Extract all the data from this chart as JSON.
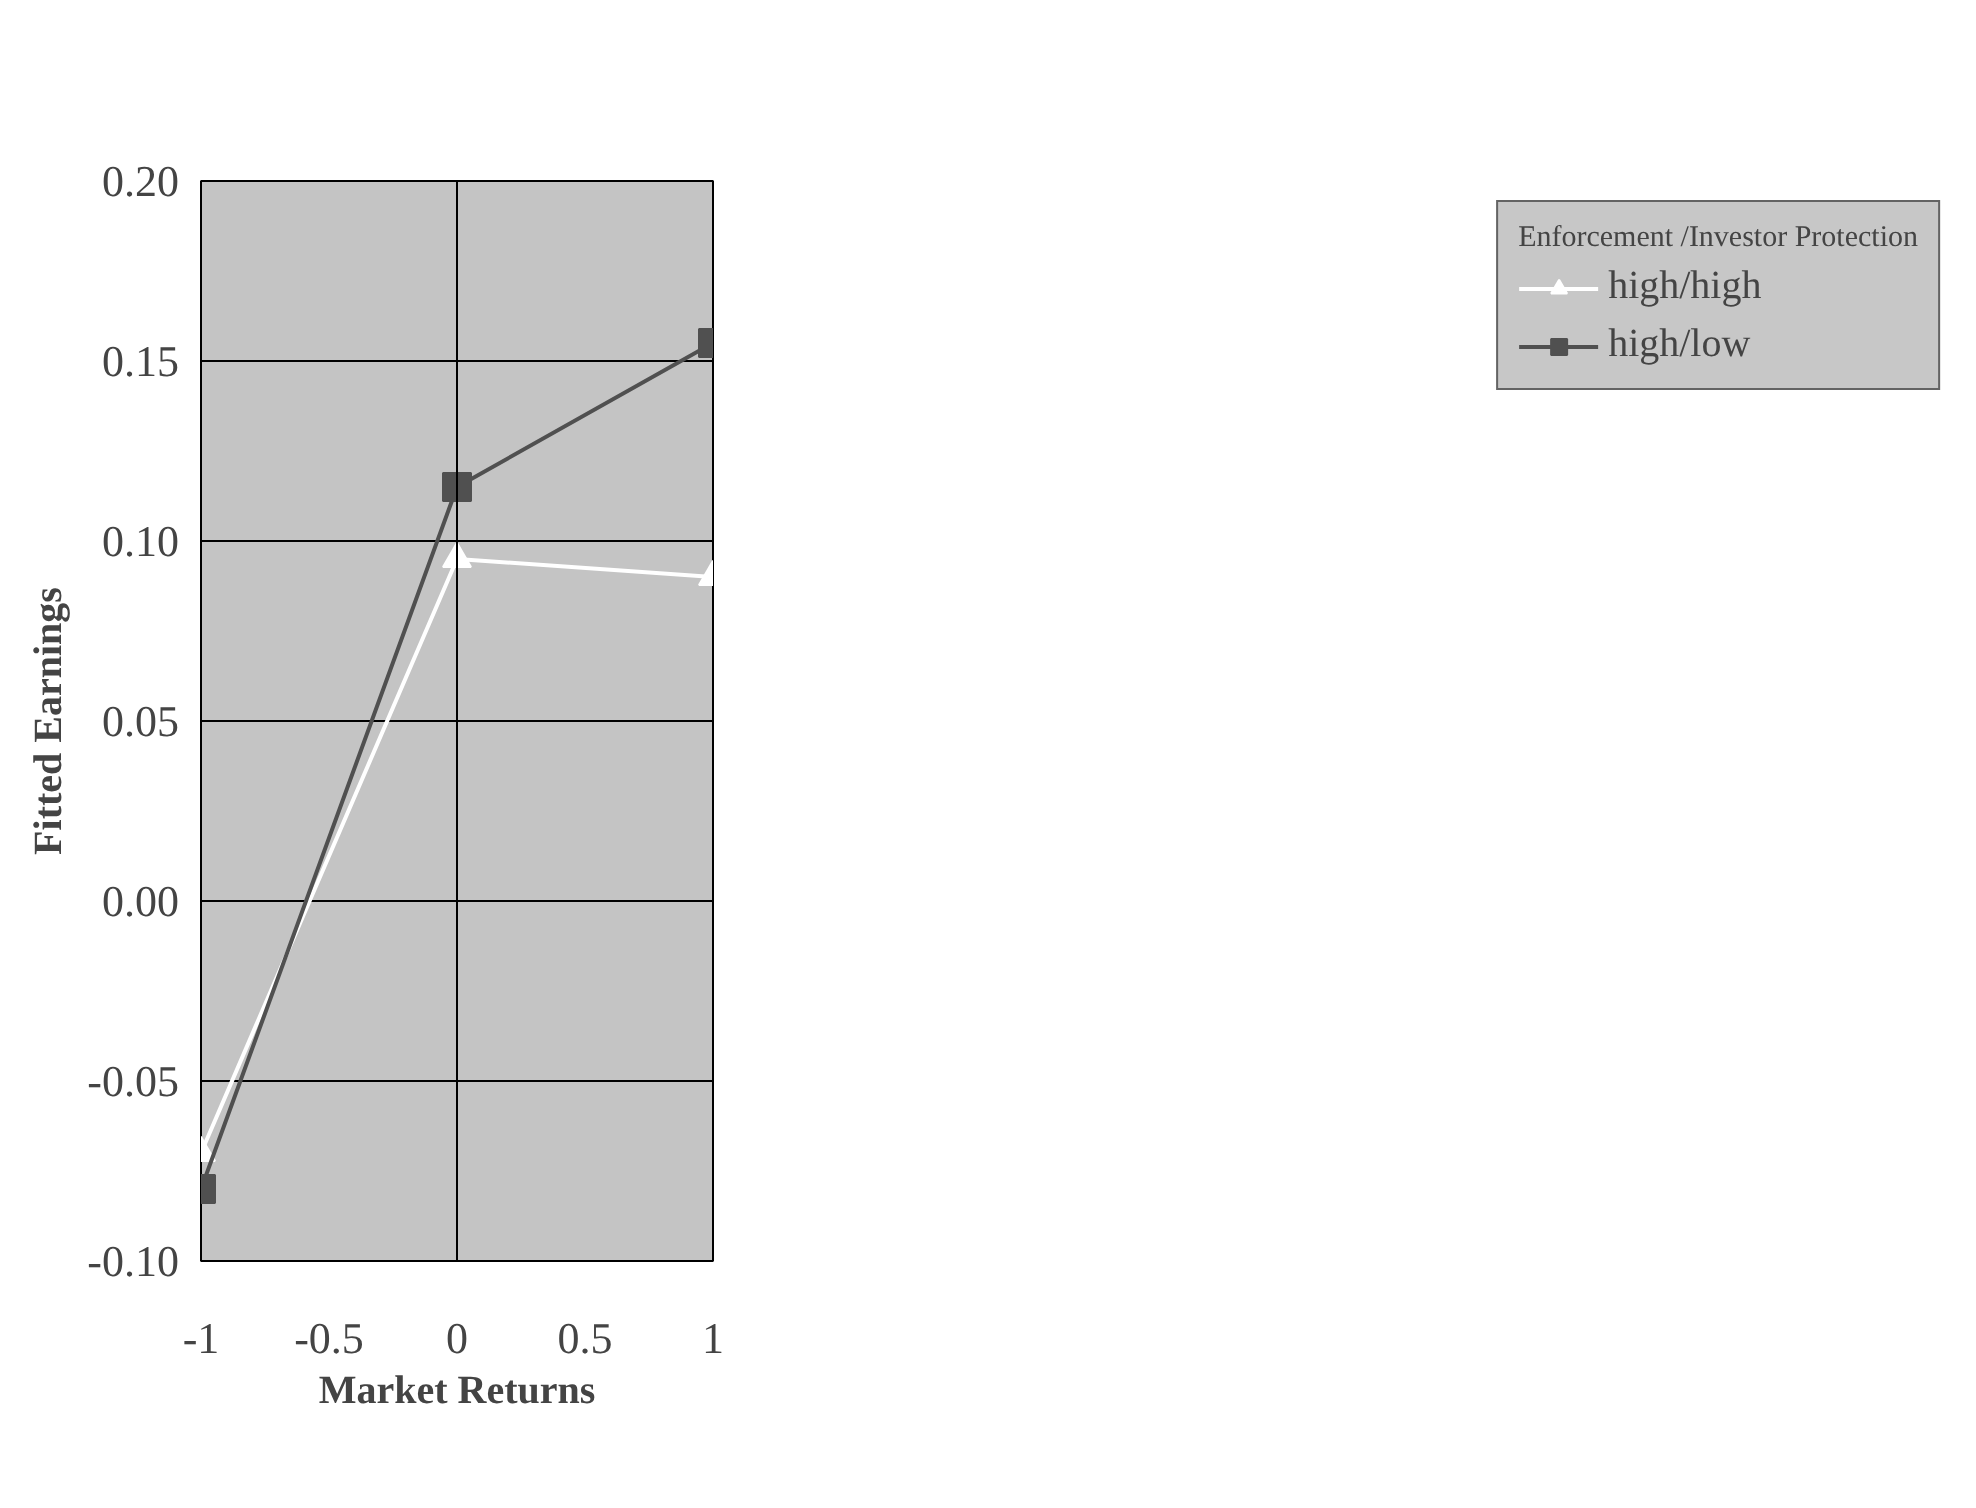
{
  "chart_data": {
    "type": "line",
    "xlabel": "Market Returns",
    "ylabel": "Fitted Earnings",
    "legend_title": "Enforcement /Investor Protection",
    "x": [
      -1,
      0,
      1
    ],
    "series": [
      {
        "name": "high/high",
        "color": "#ffffff",
        "values": [
          -0.07,
          0.095,
          0.09
        ],
        "marker": "triangle"
      },
      {
        "name": "high/low",
        "color": "#505050",
        "values": [
          -0.08,
          0.115,
          0.155
        ],
        "marker": "square"
      }
    ],
    "xlim": [
      -1,
      1
    ],
    "xticks": [
      -1,
      {
        "value": -0.5,
        "label": "-0.5"
      },
      0,
      {
        "value": 0.5,
        "label": "0.5"
      },
      1
    ],
    "ylim": [
      -0.1,
      0.2
    ],
    "yticks": [
      {
        "value": -0.1,
        "label": "-0.10"
      },
      {
        "value": -0.05,
        "label": "-0.05"
      },
      {
        "value": 0,
        "label": "0.00"
      },
      {
        "value": 0.05,
        "label": "0.05"
      },
      {
        "value": 0.1,
        "label": "0.10"
      },
      {
        "value": 0.15,
        "label": "0.15"
      },
      {
        "value": 0.2,
        "label": "0.20"
      }
    ],
    "ref_lines": [
      {
        "axis": "x",
        "value": 0
      }
    ],
    "grid": "y",
    "legend": "right",
    "line_style": "solid"
  }
}
